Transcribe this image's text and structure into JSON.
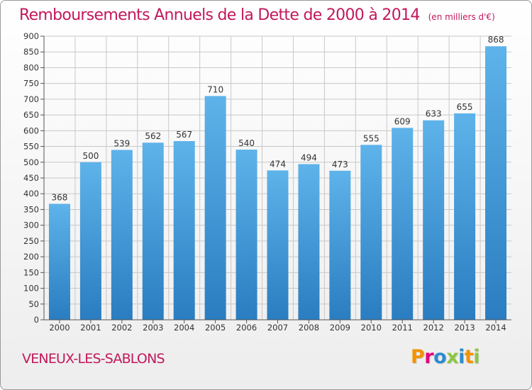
{
  "title": "Remboursements Annuels de la Dette de 2000 à 2014",
  "unit_note": "(en milliers d'€)",
  "town": "VENEUX-LES-SABLONS",
  "logo": {
    "text": "Proxiti",
    "colors": [
      "#f39200",
      "#e4007c",
      "#2d8ccd",
      "#8dc63f",
      "#2d8ccd",
      "#f39200",
      "#8dc63f"
    ]
  },
  "colors": {
    "bar": "#3b93d6",
    "text": "#c2185b",
    "grid": "#c8c8c8"
  },
  "chart_data": {
    "type": "bar",
    "categories": [
      "2000",
      "2001",
      "2002",
      "2003",
      "2004",
      "2005",
      "2006",
      "2007",
      "2008",
      "2009",
      "2010",
      "2011",
      "2012",
      "2013",
      "2014"
    ],
    "values": [
      368,
      500,
      539,
      562,
      567,
      710,
      540,
      474,
      494,
      473,
      555,
      609,
      633,
      655,
      868
    ],
    "yticks": [
      0,
      50,
      100,
      150,
      200,
      250,
      300,
      350,
      400,
      450,
      500,
      550,
      600,
      650,
      700,
      750,
      800,
      850,
      900
    ],
    "ylim": [
      0,
      900
    ],
    "grid": true,
    "data_labels": true
  }
}
